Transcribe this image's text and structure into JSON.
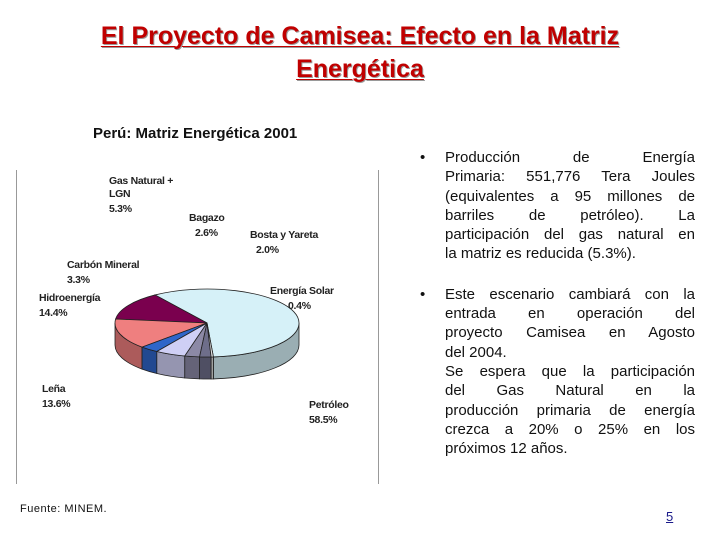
{
  "slide": {
    "title_line1": "El Proyecto de Camisea: Efecto en la Matriz",
    "title_line2": "Energética",
    "figure_title": "Perú: Matriz Energética 2001",
    "source": "Fuente: MINEM.",
    "page_number": "5",
    "colors": {
      "title": "#c00000"
    }
  },
  "chart_data": {
    "type": "pie",
    "slices": [
      {
        "label": "Petróleo",
        "value_label": "58.5%",
        "value": 58.5,
        "color": "#d6f1f8"
      },
      {
        "label": "Leña",
        "value_label": "13.6%",
        "value": 13.6,
        "color": "#7a004e"
      },
      {
        "label": "Hidroenergía",
        "value_label": "14.4%",
        "value": 14.4,
        "color": "#ef7f7f"
      },
      {
        "label": "Carbón Mineral",
        "value_label": "3.3%",
        "value": 3.3,
        "color": "#2f66c9"
      },
      {
        "label": "Gas Natural +\nLGN",
        "value_label": "5.3%",
        "value": 5.3,
        "color": "#cfcff5"
      },
      {
        "label": "Bagazo",
        "value_label": "2.6%",
        "value": 2.6,
        "color": "#8c89a6"
      },
      {
        "label": "Bosta y Yareta",
        "value_label": "2.0%",
        "value": 2.0,
        "color": "#6e6e8a"
      },
      {
        "label": "Energía Solar",
        "value_label": "0.4%",
        "value": 0.4,
        "color": "#e0e0e0"
      }
    ]
  },
  "bullets": [
    {
      "lines": [
        "Producción de Energía",
        "Primaria: 551,776 Tera Joules",
        "(equivalentes a 95 millones de",
        "barriles de petróleo). La",
        "participación del gas natural en",
        "la matriz es reducida (5.3%)."
      ]
    },
    {
      "lines": [
        "Este escenario cambiará con la",
        "entrada en operación del",
        "proyecto Camisea en Agosto",
        "del 2004.",
        "Se espera que la participación",
        "del Gas Natural en la",
        "producción primaria de energía",
        "crezca a 20% o 25% en los",
        "próximos 12 años."
      ]
    }
  ]
}
